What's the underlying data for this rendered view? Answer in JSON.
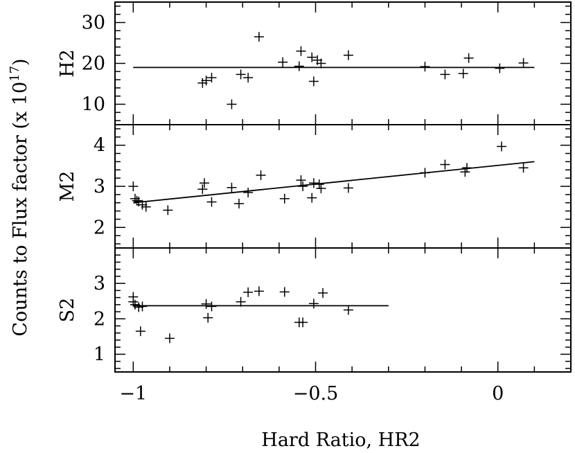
{
  "chart_data": {
    "type": "scatter",
    "xlabel": "Hard Ratio, HR2",
    "ylabel": "Counts to Flux factor (x 10",
    "ylabel_exp": "17",
    "ylabel_close": ")",
    "xlim": [
      -1.05,
      0.2
    ],
    "x_ticks": [
      {
        "value": -1,
        "label": "−1"
      },
      {
        "value": -0.5,
        "label": "−0.5"
      },
      {
        "value": 0,
        "label": "0"
      }
    ],
    "panels": [
      {
        "name": "H2",
        "ylim": [
          5,
          35
        ],
        "y_ticks": [
          {
            "value": 10,
            "label": "10"
          },
          {
            "value": 20,
            "label": "20"
          },
          {
            "value": 30,
            "label": "30"
          }
        ],
        "points": [
          {
            "x": -0.81,
            "y": 15.2
          },
          {
            "x": -0.8,
            "y": 15.8
          },
          {
            "x": -0.785,
            "y": 16.5
          },
          {
            "x": -0.73,
            "y": 10.0
          },
          {
            "x": -0.705,
            "y": 17.3
          },
          {
            "x": -0.685,
            "y": 16.5
          },
          {
            "x": -0.655,
            "y": 26.5
          },
          {
            "x": -0.59,
            "y": 20.3
          },
          {
            "x": -0.545,
            "y": 19.3
          },
          {
            "x": -0.54,
            "y": 23.0
          },
          {
            "x": -0.51,
            "y": 21.5
          },
          {
            "x": -0.505,
            "y": 15.6
          },
          {
            "x": -0.495,
            "y": 20.8
          },
          {
            "x": -0.485,
            "y": 20.0
          },
          {
            "x": -0.41,
            "y": 22.0
          },
          {
            "x": -0.2,
            "y": 19.2
          },
          {
            "x": -0.145,
            "y": 17.3
          },
          {
            "x": -0.095,
            "y": 17.5
          },
          {
            "x": -0.08,
            "y": 21.3
          },
          {
            "x": 0.005,
            "y": 18.8
          },
          {
            "x": 0.07,
            "y": 20.1
          }
        ],
        "fit": {
          "x": [
            -1.0,
            0.1
          ],
          "y": [
            19.0,
            19.0
          ]
        }
      },
      {
        "name": "M2",
        "ylim": [
          1.5,
          4.5
        ],
        "y_ticks": [
          {
            "value": 2,
            "label": "2"
          },
          {
            "value": 3,
            "label": "3"
          },
          {
            "value": 4,
            "label": "4"
          }
        ],
        "points": [
          {
            "x": -1.0,
            "y": 3.0
          },
          {
            "x": -0.995,
            "y": 2.7
          },
          {
            "x": -0.99,
            "y": 2.65
          },
          {
            "x": -0.985,
            "y": 2.63
          },
          {
            "x": -0.975,
            "y": 2.55
          },
          {
            "x": -0.965,
            "y": 2.5
          },
          {
            "x": -0.905,
            "y": 2.42
          },
          {
            "x": -0.81,
            "y": 2.93
          },
          {
            "x": -0.805,
            "y": 3.08
          },
          {
            "x": -0.785,
            "y": 2.62
          },
          {
            "x": -0.73,
            "y": 2.97
          },
          {
            "x": -0.71,
            "y": 2.58
          },
          {
            "x": -0.685,
            "y": 2.85
          },
          {
            "x": -0.65,
            "y": 3.27
          },
          {
            "x": -0.585,
            "y": 2.7
          },
          {
            "x": -0.54,
            "y": 3.15
          },
          {
            "x": -0.535,
            "y": 3.0
          },
          {
            "x": -0.51,
            "y": 2.72
          },
          {
            "x": -0.505,
            "y": 3.08
          },
          {
            "x": -0.49,
            "y": 3.05
          },
          {
            "x": -0.485,
            "y": 2.95
          },
          {
            "x": -0.41,
            "y": 2.96
          },
          {
            "x": -0.2,
            "y": 3.33
          },
          {
            "x": -0.145,
            "y": 3.53
          },
          {
            "x": -0.09,
            "y": 3.35
          },
          {
            "x": -0.085,
            "y": 3.45
          },
          {
            "x": 0.01,
            "y": 3.97
          },
          {
            "x": 0.07,
            "y": 3.45
          }
        ],
        "fit": {
          "x": [
            -1.0,
            0.1
          ],
          "y": [
            2.6,
            3.6
          ]
        }
      },
      {
        "name": "S2",
        "ylim": [
          0.5,
          4.0
        ],
        "y_ticks": [
          {
            "value": 1,
            "label": "1"
          },
          {
            "value": 2,
            "label": "2"
          },
          {
            "value": 3,
            "label": "3"
          }
        ],
        "points": [
          {
            "x": -1.0,
            "y": 2.62
          },
          {
            "x": -1.0,
            "y": 2.48
          },
          {
            "x": -0.995,
            "y": 2.4
          },
          {
            "x": -0.985,
            "y": 2.33
          },
          {
            "x": -0.98,
            "y": 1.65
          },
          {
            "x": -0.975,
            "y": 2.35
          },
          {
            "x": -0.9,
            "y": 1.45
          },
          {
            "x": -0.8,
            "y": 2.42
          },
          {
            "x": -0.795,
            "y": 2.03
          },
          {
            "x": -0.785,
            "y": 2.35
          },
          {
            "x": -0.705,
            "y": 2.48
          },
          {
            "x": -0.685,
            "y": 2.75
          },
          {
            "x": -0.655,
            "y": 2.78
          },
          {
            "x": -0.585,
            "y": 2.76
          },
          {
            "x": -0.545,
            "y": 1.9
          },
          {
            "x": -0.535,
            "y": 1.9
          },
          {
            "x": -0.505,
            "y": 2.43
          },
          {
            "x": -0.48,
            "y": 2.73
          },
          {
            "x": -0.41,
            "y": 2.25
          }
        ],
        "fit": {
          "x": [
            -1.0,
            -0.3
          ],
          "y": [
            2.37,
            2.37
          ]
        }
      }
    ]
  }
}
